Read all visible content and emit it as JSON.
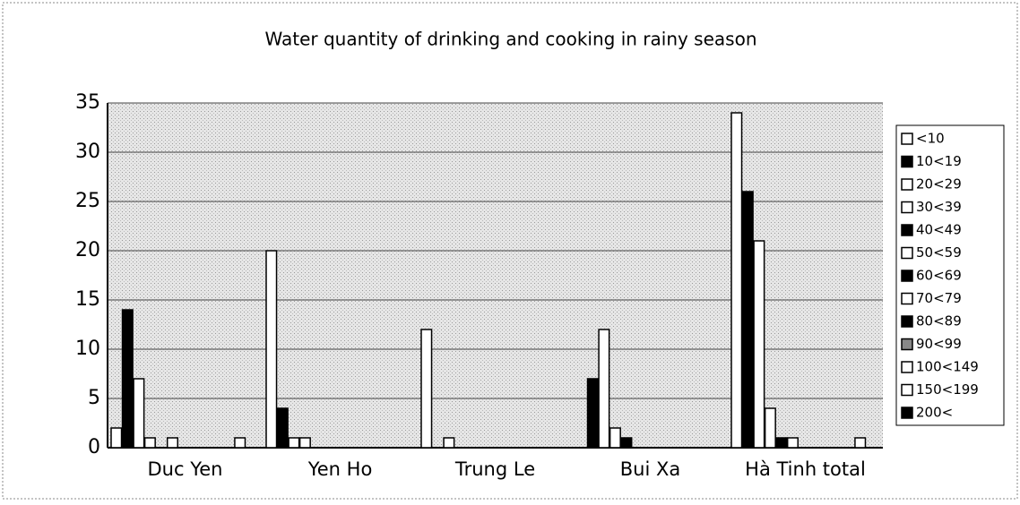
{
  "chart_data": {
    "type": "bar",
    "title": "Water quantity of drinking and cooking in rainy season",
    "categories": [
      "Duc Yen",
      "Yen Ho",
      "Trung Le",
      "Bui Xa",
      "Hà Tinh total"
    ],
    "ylim": [
      0,
      35
    ],
    "yticks": [
      0,
      5,
      10,
      15,
      20,
      25,
      30,
      35
    ],
    "grid": true,
    "legend": "right",
    "series": [
      {
        "name": "<10",
        "color": "#ffffff",
        "values": [
          2,
          20,
          12,
          0,
          34
        ]
      },
      {
        "name": "10<19",
        "color": "#000000",
        "values": [
          14,
          4,
          0,
          7,
          26
        ]
      },
      {
        "name": "20<29",
        "color": "#ffffff",
        "values": [
          7,
          1,
          1,
          12,
          21
        ]
      },
      {
        "name": "30<39",
        "color": "#ffffff",
        "values": [
          1,
          1,
          0,
          2,
          4
        ]
      },
      {
        "name": "40<49",
        "color": "#000000",
        "values": [
          0,
          0,
          0,
          1,
          1
        ]
      },
      {
        "name": "50<59",
        "color": "#ffffff",
        "values": [
          1,
          0,
          0,
          0,
          1
        ]
      },
      {
        "name": "60<69",
        "color": "#000000",
        "values": [
          0,
          0,
          0,
          0,
          0
        ]
      },
      {
        "name": "70<79",
        "color": "#ffffff",
        "values": [
          0,
          0,
          0,
          0,
          0
        ]
      },
      {
        "name": "80<89",
        "color": "#000000",
        "values": [
          0,
          0,
          0,
          0,
          0
        ]
      },
      {
        "name": "90<99",
        "color": "#888888",
        "values": [
          0,
          0,
          0,
          0,
          0
        ]
      },
      {
        "name": "100<149",
        "color": "#ffffff",
        "values": [
          0,
          0,
          0,
          0,
          0
        ]
      },
      {
        "name": "150<199",
        "color": "#ffffff",
        "values": [
          1,
          0,
          0,
          0,
          1
        ]
      },
      {
        "name": "200<",
        "color": "#000000",
        "values": [
          0,
          0,
          0,
          0,
          0
        ]
      }
    ]
  }
}
